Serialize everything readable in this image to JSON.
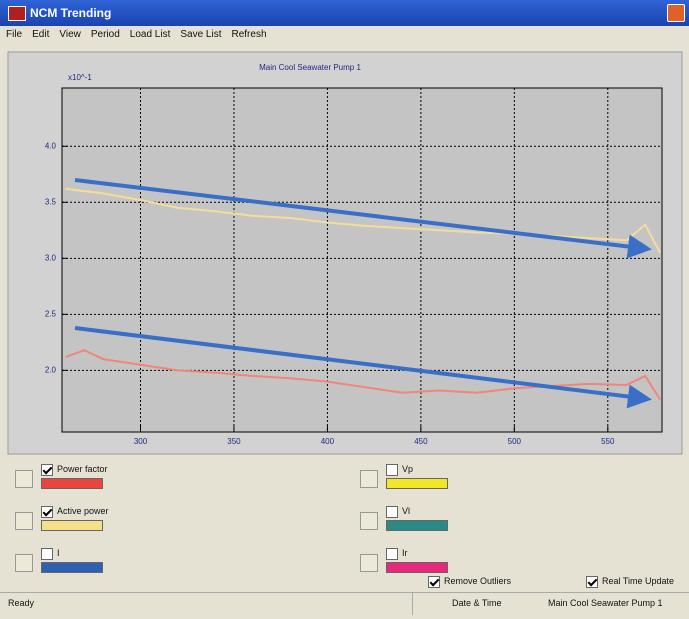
{
  "window": {
    "title": "NCM Trending"
  },
  "menu": [
    "File",
    "Edit",
    "View",
    "Period",
    "Load List",
    "Save List",
    "Refresh"
  ],
  "chart_data": {
    "type": "line",
    "title": "Main Cool Seawater Pump 1",
    "y_label": "x10^-1",
    "x": [
      260,
      270,
      280,
      300,
      320,
      340,
      360,
      380,
      400,
      420,
      440,
      460,
      480,
      500,
      520,
      540,
      560,
      570,
      578
    ],
    "series": [
      {
        "name": "Active power",
        "color": "#f2dca0",
        "values": [
          3.62,
          3.6,
          3.58,
          3.52,
          3.45,
          3.42,
          3.38,
          3.36,
          3.32,
          3.29,
          3.27,
          3.25,
          3.23,
          3.22,
          3.2,
          3.18,
          3.16,
          3.3,
          3.05
        ]
      },
      {
        "name": "Power factor",
        "color": "#f0857a",
        "values": [
          2.12,
          2.18,
          2.1,
          2.05,
          2.0,
          1.98,
          1.95,
          1.93,
          1.9,
          1.85,
          1.8,
          1.82,
          1.8,
          1.84,
          1.86,
          1.88,
          1.87,
          1.95,
          1.74
        ]
      }
    ],
    "xlim": [
      258,
      579
    ],
    "xticks": [
      300,
      350,
      400,
      450,
      500,
      550
    ],
    "ylim": [
      1.45,
      4.52
    ],
    "yticks": [
      {
        "value": 2,
        "label": "2.0"
      },
      2.5,
      {
        "value": 3,
        "label": "3.0"
      },
      3.5,
      {
        "value": 4,
        "label": "4.0"
      }
    ],
    "grid": true
  },
  "legend_controls": [
    {
      "label": "Power factor",
      "checked": true,
      "color": "#e8463c"
    },
    {
      "label": "Active power",
      "checked": true,
      "color": "#f5e08c"
    },
    {
      "label": "I",
      "checked": false,
      "color": "#2f5fb0"
    },
    {
      "label": "Vp",
      "checked": false,
      "color": "#f2e628"
    },
    {
      "label": "Vl",
      "checked": false,
      "color": "#2a8a86"
    },
    {
      "label": "Ir",
      "checked": false,
      "color": "#e8287c"
    }
  ],
  "options": [
    {
      "label": "Remove Outliers",
      "checked": true
    },
    {
      "label": "Real Time Update",
      "checked": true
    }
  ],
  "status_bar": [
    "Ready",
    "Date & Time",
    "Main Cool Seawater Pump 1"
  ]
}
